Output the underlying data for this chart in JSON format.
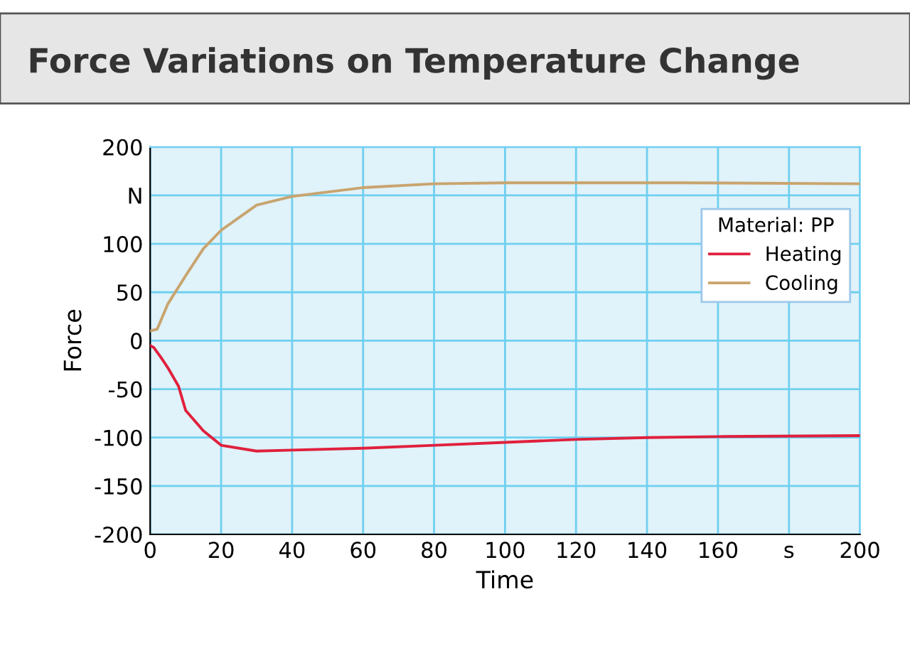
{
  "chart_data": {
    "type": "line",
    "title": "Force Variations on Temperature Change",
    "xlabel": "Time",
    "ylabel": "Force",
    "legend_title": "Material: PP",
    "legend": "right",
    "grid": true,
    "line_style": "solid",
    "xlim": [
      0,
      200
    ],
    "xticks": [
      0,
      20,
      40,
      60,
      80,
      100,
      120,
      140,
      160,
      {
        "value": 180,
        "label": "s"
      },
      200
    ],
    "ylim": [
      -200,
      200
    ],
    "yticks": [
      -200,
      -150,
      -100,
      -50,
      0,
      50,
      100,
      {
        "value": 150,
        "label": "N"
      },
      200
    ],
    "series": [
      {
        "name": "Heating",
        "color": "#e0203c",
        "x": [
          0,
          1,
          3,
          5,
          8,
          10,
          15,
          20,
          30,
          40,
          60,
          80,
          100,
          120,
          140,
          160,
          200
        ],
        "values": [
          -5,
          -7,
          -17,
          -28,
          -47,
          -72,
          -93,
          -108,
          -114,
          -113,
          -111,
          -108,
          -105,
          -102,
          -100,
          -99,
          -98
        ]
      },
      {
        "name": "Cooling",
        "color": "#c8a46e",
        "x": [
          0,
          2,
          5,
          10,
          15,
          20,
          30,
          40,
          60,
          80,
          100,
          150,
          200
        ],
        "values": [
          10,
          12,
          38,
          67,
          95,
          114,
          140,
          149,
          158,
          162,
          163,
          163,
          162
        ]
      }
    ]
  }
}
